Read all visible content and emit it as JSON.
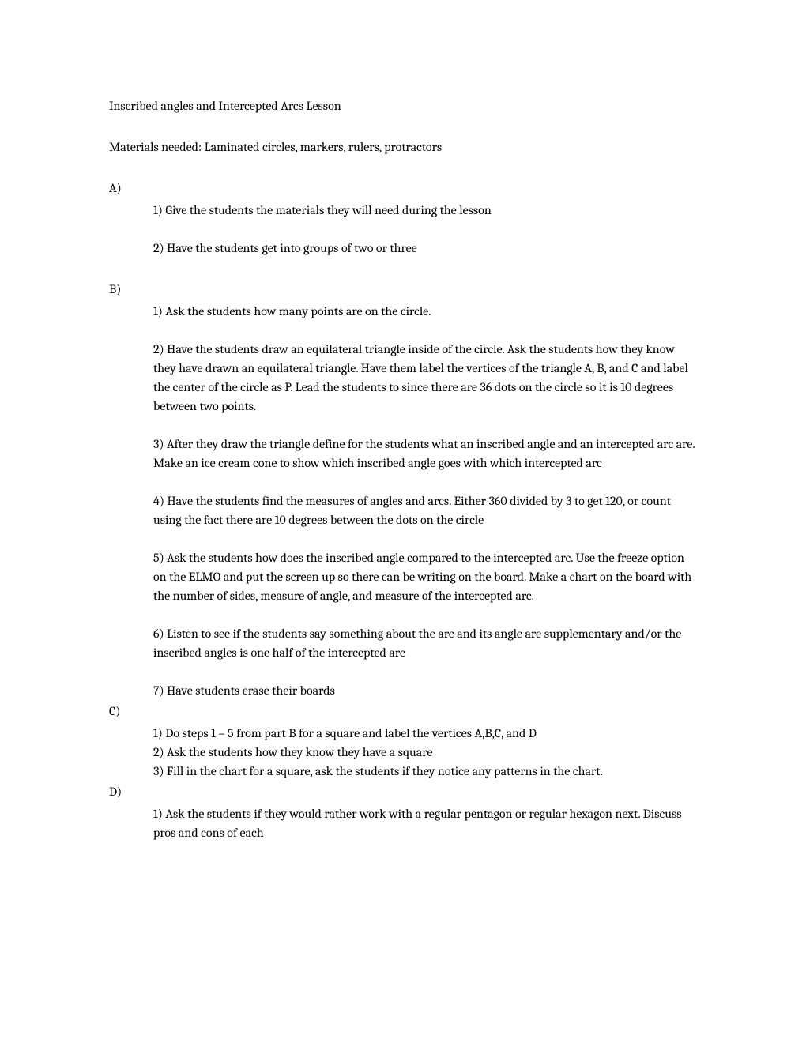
{
  "title": "Inscribed angles and Intercepted Arcs Lesson",
  "materials": "Materials needed:  Laminated circles, markers, rulers, protractors",
  "sections": {
    "a": {
      "label": "A)",
      "items": [
        "1)  Give the students the materials they will need during the lesson",
        "2)  Have the students get into groups of two or three"
      ]
    },
    "b": {
      "label": "B)",
      "items": [
        "1)  Ask the students how many points are on the circle.",
        "2)  Have the students draw an equilateral triangle inside of the circle.  Ask the students how they know they have drawn an equilateral triangle.  Have them label the vertices of the triangle A, B, and C and label the center of the circle as P.  Lead the students to since there are 36 dots on the circle so it is 10 degrees between two points.",
        "3)  After they draw the triangle define for the students what an inscribed angle and an intercepted arc are.  Make an ice cream cone to show which inscribed angle goes with which intercepted arc",
        "4)  Have the students find the measures of angles and arcs.  Either 360 divided by 3 to get 120, or count using the fact there are 10 degrees between the dots on the circle",
        "5)  Ask the students how does the inscribed angle compared to the intercepted arc.  Use the freeze option on the ELMO and put the screen up so there can be writing on the board. Make a chart on the board with the number of sides, measure of angle, and measure of the intercepted arc.",
        "6)  Listen to see if the students say something about the arc and its angle are supplementary and/or the inscribed angles is one half of the intercepted arc",
        "7)  Have students erase their boards"
      ]
    },
    "c": {
      "label": "C)",
      "items": [
        "1)  Do steps 1 – 5 from part B for a square and label the vertices A,B,C, and D",
        "2)  Ask the students how they know they have a square",
        "3)  Fill in the chart for a square, ask the students if they notice any patterns in the chart."
      ]
    },
    "d": {
      "label": "D)",
      "items": [
        "1)  Ask the students if they would rather work with a regular pentagon or regular hexagon next.  Discuss pros and cons of each"
      ]
    }
  }
}
